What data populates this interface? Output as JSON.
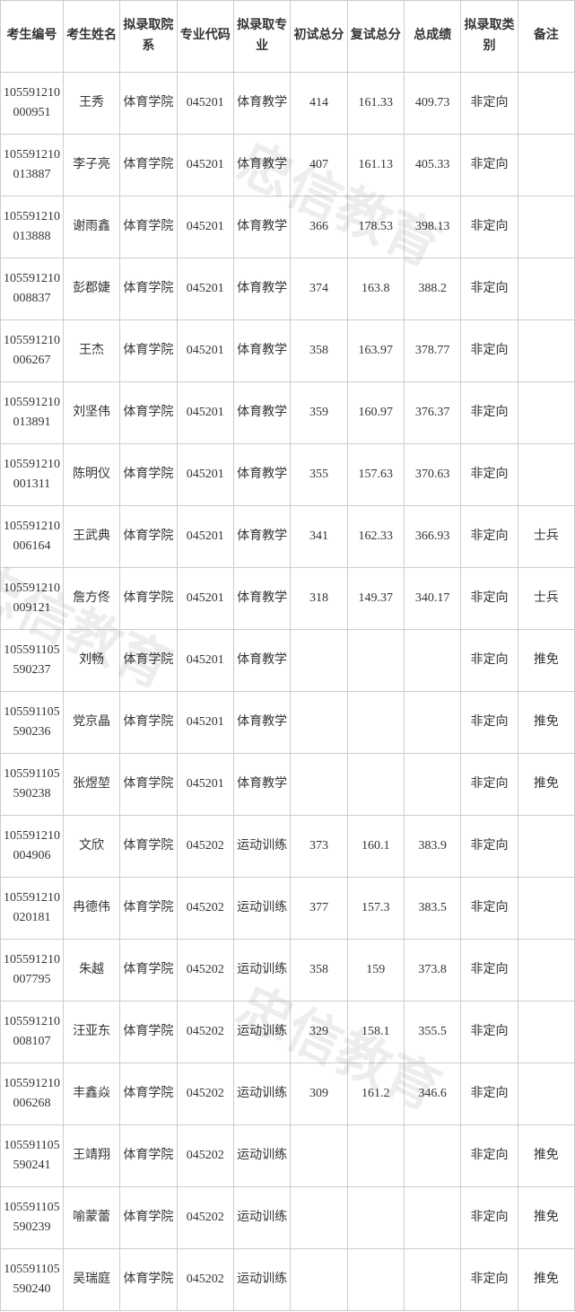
{
  "watermark": "忠信教育",
  "columns": [
    "考生编号",
    "考生姓名",
    "拟录取院系",
    "专业代码",
    "拟录取专业",
    "初试总分",
    "复试总分",
    "总成绩",
    "拟录取类别",
    "备注"
  ],
  "rows": [
    {
      "id": "105591210000951",
      "name": "王秀",
      "dept": "体育学院",
      "code": "045201",
      "major": "体育教学",
      "s1": "414",
      "s2": "161.33",
      "tot": "409.73",
      "type": "非定向",
      "note": ""
    },
    {
      "id": "105591210013887",
      "name": "李子亮",
      "dept": "体育学院",
      "code": "045201",
      "major": "体育教学",
      "s1": "407",
      "s2": "161.13",
      "tot": "405.33",
      "type": "非定向",
      "note": ""
    },
    {
      "id": "105591210013888",
      "name": "谢雨鑫",
      "dept": "体育学院",
      "code": "045201",
      "major": "体育教学",
      "s1": "366",
      "s2": "178.53",
      "tot": "398.13",
      "type": "非定向",
      "note": ""
    },
    {
      "id": "105591210008837",
      "name": "彭郡婕",
      "dept": "体育学院",
      "code": "045201",
      "major": "体育教学",
      "s1": "374",
      "s2": "163.8",
      "tot": "388.2",
      "type": "非定向",
      "note": ""
    },
    {
      "id": "105591210006267",
      "name": "王杰",
      "dept": "体育学院",
      "code": "045201",
      "major": "体育教学",
      "s1": "358",
      "s2": "163.97",
      "tot": "378.77",
      "type": "非定向",
      "note": ""
    },
    {
      "id": "105591210013891",
      "name": "刘坚伟",
      "dept": "体育学院",
      "code": "045201",
      "major": "体育教学",
      "s1": "359",
      "s2": "160.97",
      "tot": "376.37",
      "type": "非定向",
      "note": ""
    },
    {
      "id": "105591210001311",
      "name": "陈明仪",
      "dept": "体育学院",
      "code": "045201",
      "major": "体育教学",
      "s1": "355",
      "s2": "157.63",
      "tot": "370.63",
      "type": "非定向",
      "note": ""
    },
    {
      "id": "105591210006164",
      "name": "王武典",
      "dept": "体育学院",
      "code": "045201",
      "major": "体育教学",
      "s1": "341",
      "s2": "162.33",
      "tot": "366.93",
      "type": "非定向",
      "note": "士兵"
    },
    {
      "id": "105591210009121",
      "name": "詹方佟",
      "dept": "体育学院",
      "code": "045201",
      "major": "体育教学",
      "s1": "318",
      "s2": "149.37",
      "tot": "340.17",
      "type": "非定向",
      "note": "士兵"
    },
    {
      "id": "105591105590237",
      "name": "刘畅",
      "dept": "体育学院",
      "code": "045201",
      "major": "体育教学",
      "s1": "",
      "s2": "",
      "tot": "",
      "type": "非定向",
      "note": "推免"
    },
    {
      "id": "105591105590236",
      "name": "党京晶",
      "dept": "体育学院",
      "code": "045201",
      "major": "体育教学",
      "s1": "",
      "s2": "",
      "tot": "",
      "type": "非定向",
      "note": "推免"
    },
    {
      "id": "105591105590238",
      "name": "张煜堃",
      "dept": "体育学院",
      "code": "045201",
      "major": "体育教学",
      "s1": "",
      "s2": "",
      "tot": "",
      "type": "非定向",
      "note": "推免"
    },
    {
      "id": "105591210004906",
      "name": "文欣",
      "dept": "体育学院",
      "code": "045202",
      "major": "运动训练",
      "s1": "373",
      "s2": "160.1",
      "tot": "383.9",
      "type": "非定向",
      "note": ""
    },
    {
      "id": "105591210020181",
      "name": "冉德伟",
      "dept": "体育学院",
      "code": "045202",
      "major": "运动训练",
      "s1": "377",
      "s2": "157.3",
      "tot": "383.5",
      "type": "非定向",
      "note": ""
    },
    {
      "id": "105591210007795",
      "name": "朱越",
      "dept": "体育学院",
      "code": "045202",
      "major": "运动训练",
      "s1": "358",
      "s2": "159",
      "tot": "373.8",
      "type": "非定向",
      "note": ""
    },
    {
      "id": "105591210008107",
      "name": "汪亚东",
      "dept": "体育学院",
      "code": "045202",
      "major": "运动训练",
      "s1": "329",
      "s2": "158.1",
      "tot": "355.5",
      "type": "非定向",
      "note": ""
    },
    {
      "id": "105591210006268",
      "name": "丰鑫焱",
      "dept": "体育学院",
      "code": "045202",
      "major": "运动训练",
      "s1": "309",
      "s2": "161.2",
      "tot": "346.6",
      "type": "非定向",
      "note": ""
    },
    {
      "id": "105591105590241",
      "name": "王靖翔",
      "dept": "体育学院",
      "code": "045202",
      "major": "运动训练",
      "s1": "",
      "s2": "",
      "tot": "",
      "type": "非定向",
      "note": "推免"
    },
    {
      "id": "105591105590239",
      "name": "喻蒙蕾",
      "dept": "体育学院",
      "code": "045202",
      "major": "运动训练",
      "s1": "",
      "s2": "",
      "tot": "",
      "type": "非定向",
      "note": "推免"
    },
    {
      "id": "105591105590240",
      "name": "吴瑞庭",
      "dept": "体育学院",
      "code": "045202",
      "major": "运动训练",
      "s1": "",
      "s2": "",
      "tot": "",
      "type": "非定向",
      "note": "推免"
    }
  ]
}
